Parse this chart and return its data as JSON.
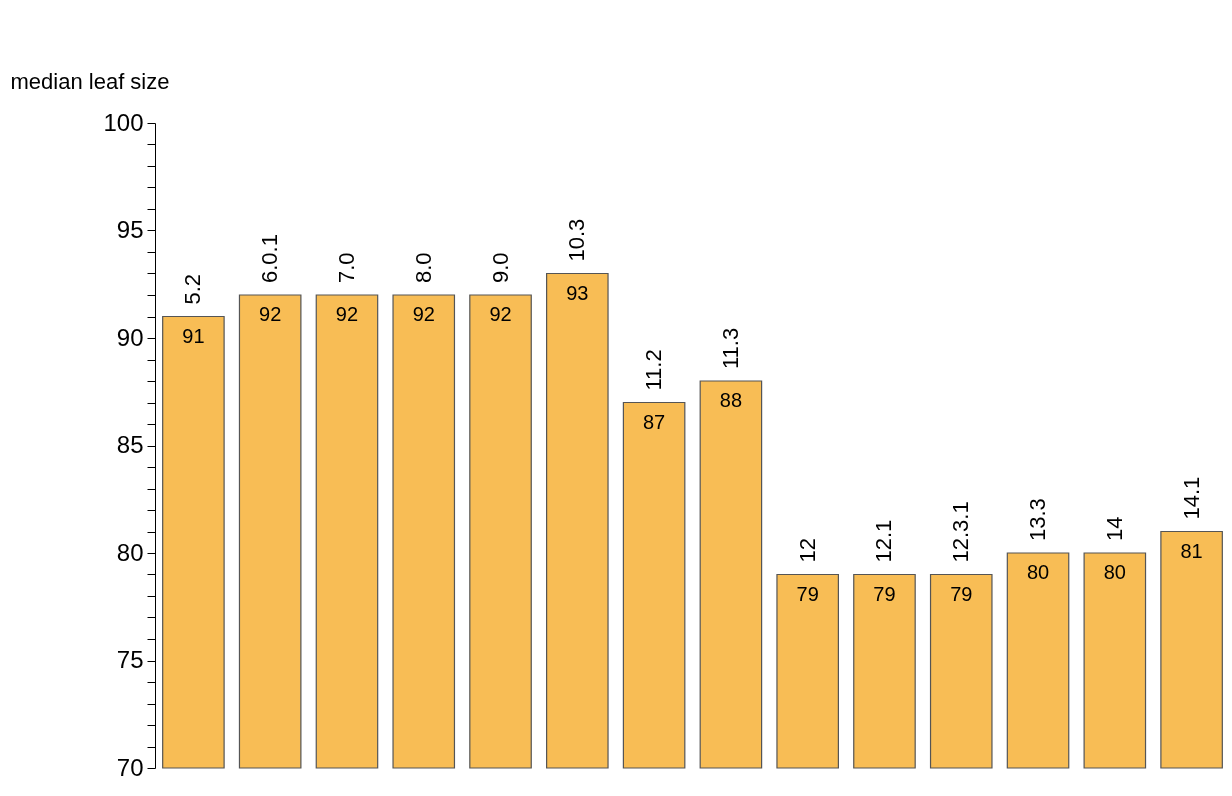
{
  "chart_data": {
    "type": "bar",
    "ylabel": "median leaf size",
    "categories": [
      "5.2",
      "6.0.1",
      "7.0",
      "8.0",
      "9.0",
      "10.3",
      "11.2",
      "11.3",
      "12",
      "12.1",
      "12.3.1",
      "13.3",
      "14",
      "14.1"
    ],
    "values": [
      91,
      92,
      92,
      92,
      92,
      93,
      87,
      88,
      79,
      79,
      79,
      80,
      80,
      81
    ],
    "color": "#f8bd55",
    "data_labels": true,
    "grid": false,
    "ylim": [
      70,
      100
    ],
    "yticks": [
      70,
      {
        "value": 71,
        "label": null
      },
      {
        "value": 72,
        "label": null
      },
      {
        "value": 73,
        "label": null
      },
      {
        "value": 74,
        "label": null
      },
      75,
      {
        "value": 76,
        "label": null
      },
      {
        "value": 77,
        "label": null
      },
      {
        "value": 78,
        "label": null
      },
      {
        "value": 79,
        "label": null
      },
      80,
      {
        "value": 81,
        "label": null
      },
      {
        "value": 82,
        "label": null
      },
      {
        "value": 83,
        "label": null
      },
      {
        "value": 84,
        "label": null
      },
      85,
      {
        "value": 86,
        "label": null
      },
      {
        "value": 87,
        "label": null
      },
      {
        "value": 88,
        "label": null
      },
      {
        "value": 89,
        "label": null
      },
      90,
      {
        "value": 91,
        "label": null
      },
      {
        "value": 92,
        "label": null
      },
      {
        "value": 93,
        "label": null
      },
      {
        "value": 94,
        "label": null
      },
      95,
      {
        "value": 96,
        "label": null
      },
      {
        "value": 97,
        "label": null
      },
      {
        "value": 98,
        "label": null
      },
      {
        "value": 99,
        "label": null
      },
      100
    ]
  }
}
